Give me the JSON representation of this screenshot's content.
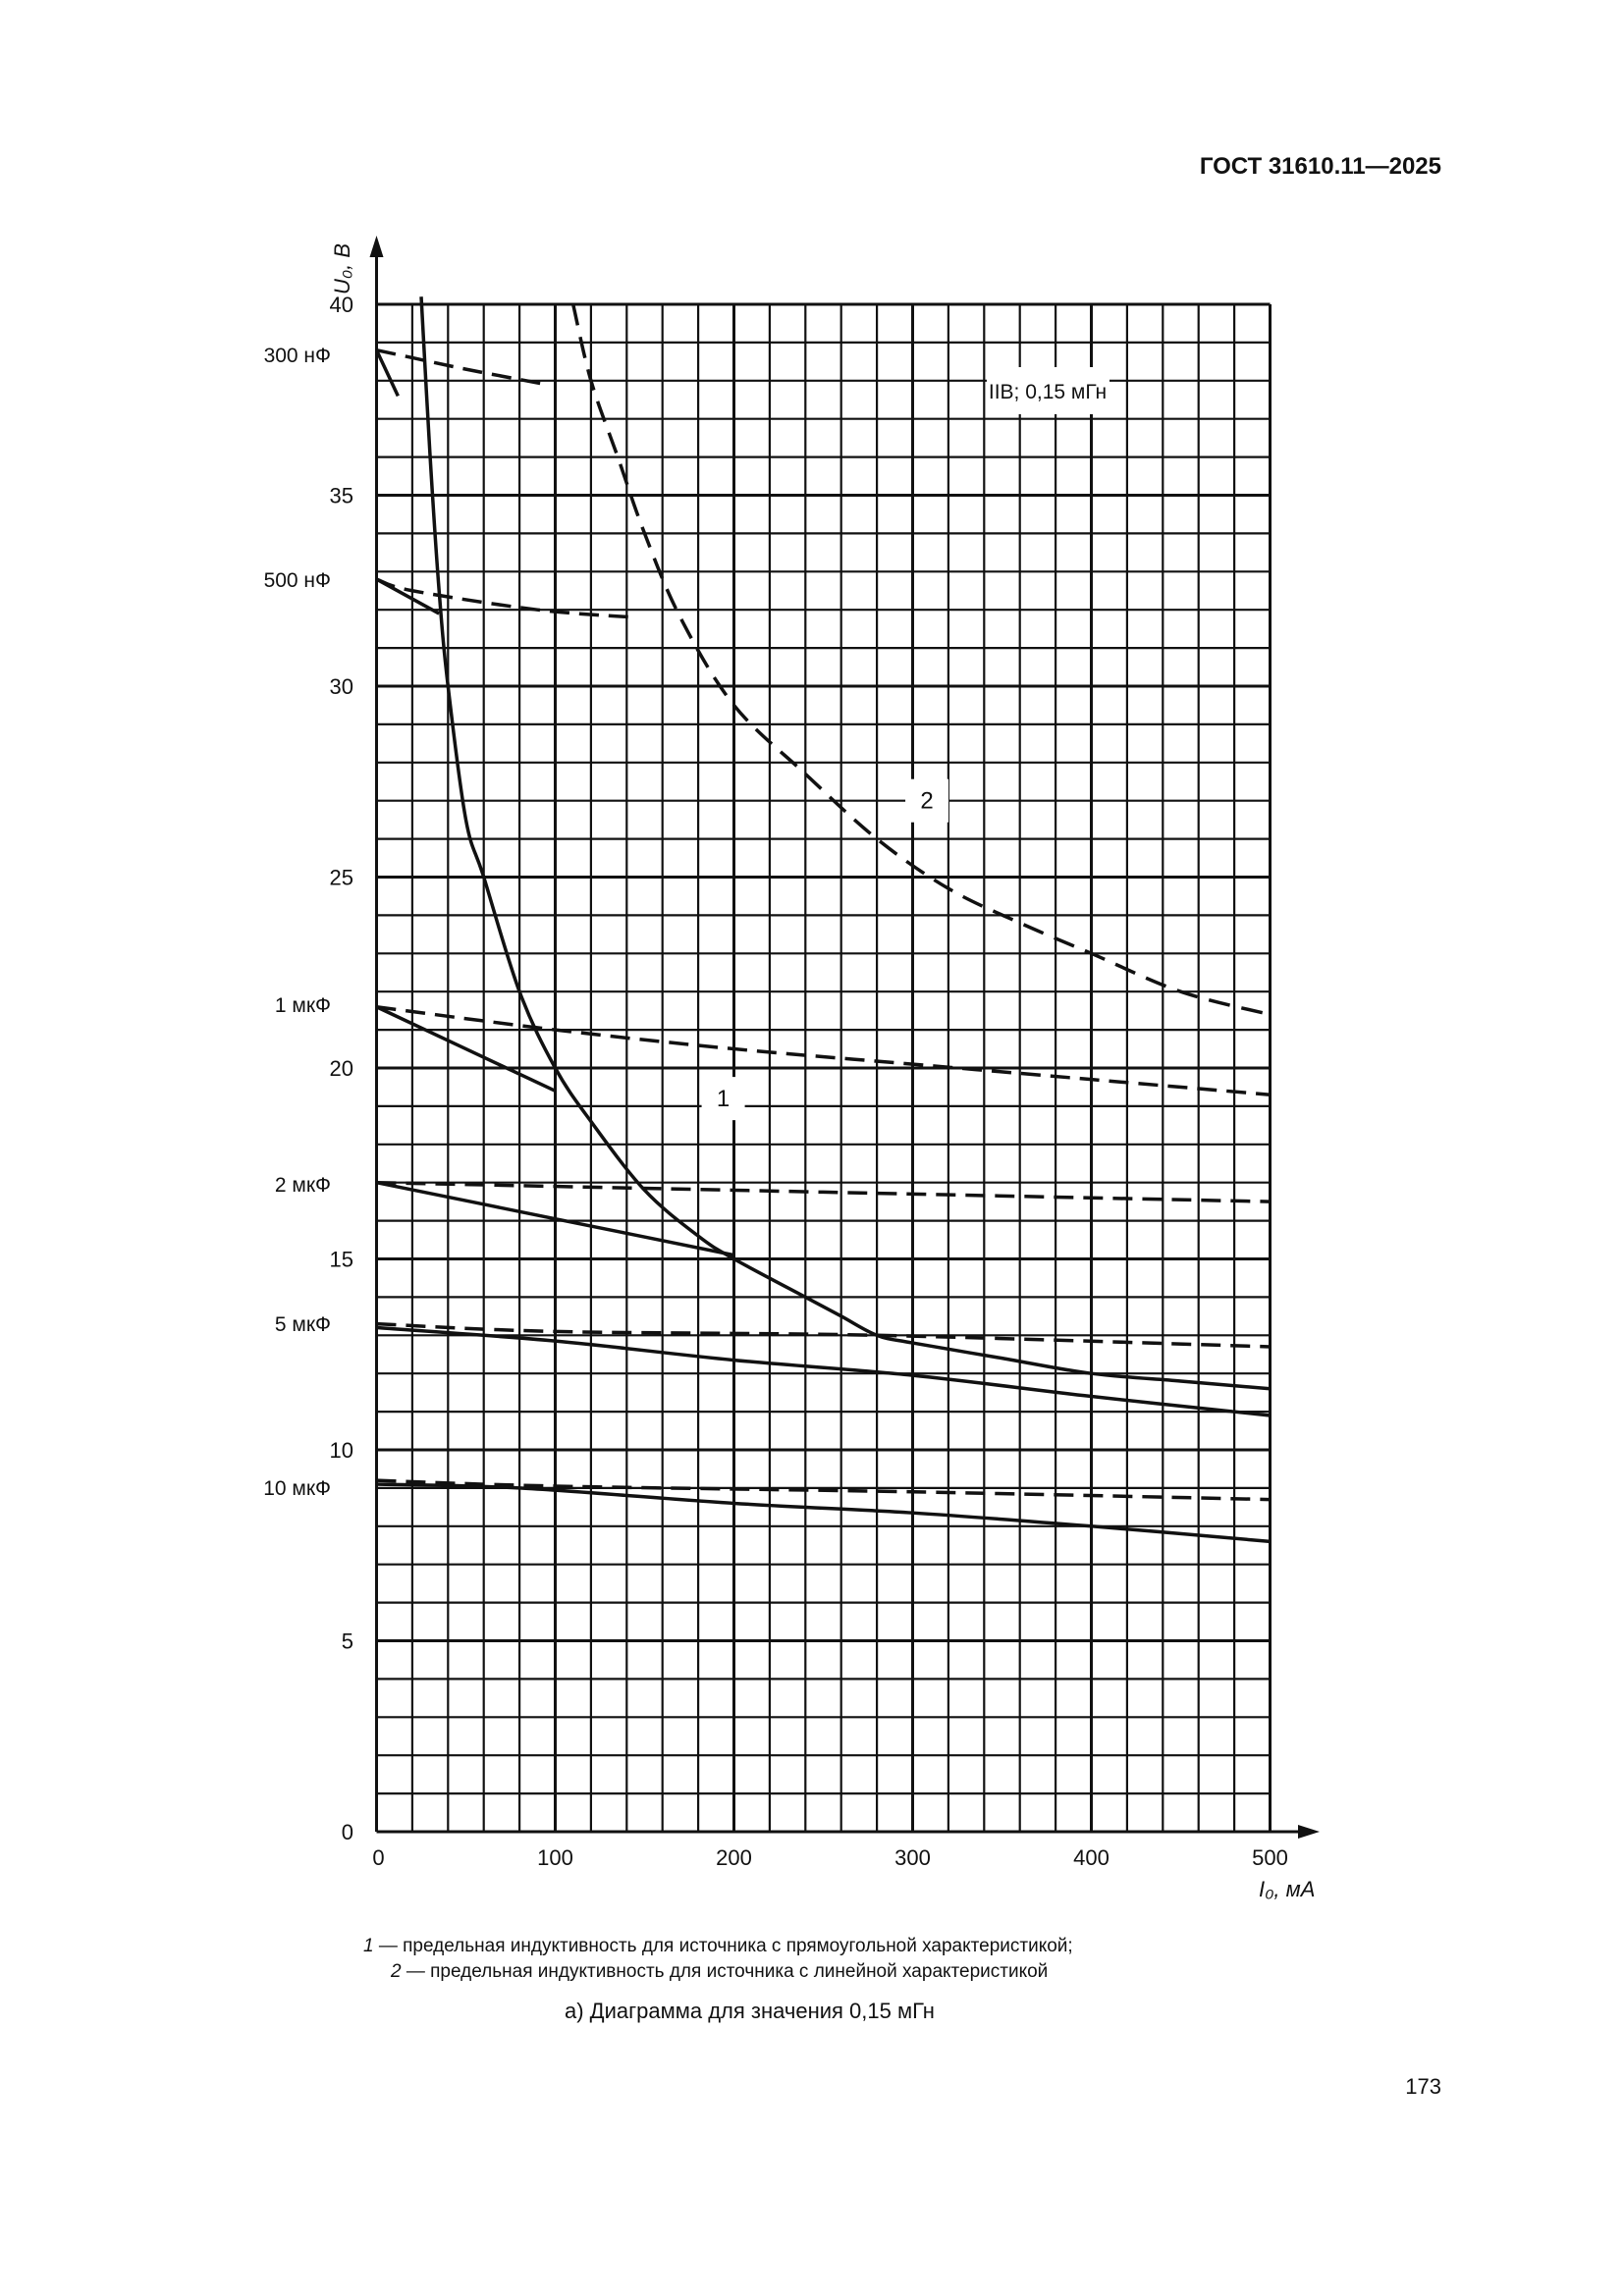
{
  "header": {
    "doc_id": "ГОСТ 31610.11—2025"
  },
  "page_number": "173",
  "legend": [
    {
      "num": "1",
      "text": " — предельная индуктивность для источника с прямоугольной характеристикой;"
    },
    {
      "num": "2",
      "text": " — предельная индуктивность для источника с линейной характеристикой"
    }
  ],
  "caption": "а) Диаграмма для значения 0,15 мГн",
  "chart_data": {
    "type": "line",
    "title": "",
    "annotation_box": "IIB; 0,15 мГн",
    "xlabel": "I₀, мА",
    "ylabel": "U₀, В",
    "xlim": [
      0,
      500
    ],
    "ylim": [
      0,
      40
    ],
    "x_ticks": [
      "0",
      "100",
      "200",
      "300",
      "400",
      "500"
    ],
    "y_ticks": [
      "0",
      "5",
      "10",
      "15",
      "20",
      "25",
      "30",
      "35",
      "40"
    ],
    "grid": {
      "on": true,
      "x_step": 20,
      "y_step": 1
    },
    "curve_labels": [
      {
        "text": "1",
        "x": 194,
        "y": 19.2
      },
      {
        "text": "2",
        "x": 308,
        "y": 27
      }
    ],
    "series": [
      {
        "name": "1",
        "style": "solid",
        "points": [
          [
            25,
            40.2
          ],
          [
            30,
            36
          ],
          [
            35,
            32.5
          ],
          [
            40,
            30
          ],
          [
            50,
            26.5
          ],
          [
            60,
            25
          ],
          [
            80,
            22
          ],
          [
            100,
            20
          ],
          [
            120,
            18.6
          ],
          [
            150,
            16.8
          ],
          [
            180,
            15.6
          ],
          [
            200,
            15
          ],
          [
            240,
            14
          ],
          [
            260,
            13.5
          ],
          [
            280,
            13
          ],
          [
            300,
            12.8
          ],
          [
            350,
            12.4
          ],
          [
            400,
            12
          ],
          [
            450,
            11.8
          ],
          [
            500,
            11.6
          ]
        ]
      },
      {
        "name": "2",
        "style": "dashed",
        "points": [
          [
            110,
            40
          ],
          [
            120,
            38
          ],
          [
            135,
            36
          ],
          [
            150,
            34
          ],
          [
            170,
            31.8
          ],
          [
            200,
            29.5
          ],
          [
            240,
            27.7
          ],
          [
            280,
            26
          ],
          [
            320,
            24.7
          ],
          [
            360,
            23.8
          ],
          [
            400,
            23
          ],
          [
            450,
            22
          ],
          [
            500,
            21.4
          ]
        ]
      }
    ],
    "capacitance_curves": [
      {
        "name": "300 нФ",
        "dashed": [
          [
            0,
            38.8
          ],
          [
            20,
            38.6
          ],
          [
            50,
            38.3
          ],
          [
            95,
            37.9
          ]
        ],
        "solid": [
          [
            0,
            38.8
          ],
          [
            12,
            37.6
          ]
        ]
      },
      {
        "name": "500 нФ",
        "dashed": [
          [
            0,
            32.8
          ],
          [
            20,
            32.5
          ],
          [
            90,
            32.0
          ],
          [
            145,
            31.8
          ]
        ],
        "solid": [
          [
            0,
            32.8
          ],
          [
            35,
            31.9
          ]
        ]
      },
      {
        "name": "1 мкФ",
        "dashed": [
          [
            0,
            21.6
          ],
          [
            100,
            21
          ],
          [
            200,
            20.5
          ],
          [
            300,
            20.1
          ],
          [
            400,
            19.7
          ],
          [
            500,
            19.3
          ]
        ],
        "solid": [
          [
            0,
            21.6
          ],
          [
            100,
            19.4
          ]
        ]
      },
      {
        "name": "2 мкФ",
        "dashed": [
          [
            0,
            17
          ],
          [
            200,
            16.8
          ],
          [
            300,
            16.7
          ],
          [
            500,
            16.5
          ]
        ],
        "solid": [
          [
            0,
            17
          ],
          [
            100,
            16.05
          ],
          [
            200,
            15.1
          ]
        ]
      },
      {
        "name": "5 мкФ",
        "dashed": [
          [
            0,
            13.3
          ],
          [
            100,
            13.1
          ],
          [
            280,
            13.0
          ],
          [
            500,
            12.7
          ]
        ],
        "solid": [
          [
            0,
            13.2
          ],
          [
            100,
            12.85
          ],
          [
            200,
            12.35
          ],
          [
            300,
            11.95
          ],
          [
            400,
            11.4
          ],
          [
            500,
            10.9
          ]
        ]
      },
      {
        "name": "10 мкФ",
        "dashed": [
          [
            0,
            9.2
          ],
          [
            100,
            9.05
          ],
          [
            300,
            8.9
          ],
          [
            500,
            8.7
          ]
        ],
        "solid": [
          [
            0,
            9.1
          ],
          [
            80,
            9.0
          ],
          [
            200,
            8.6
          ],
          [
            300,
            8.35
          ],
          [
            400,
            8.0
          ],
          [
            500,
            7.6
          ]
        ]
      }
    ]
  }
}
